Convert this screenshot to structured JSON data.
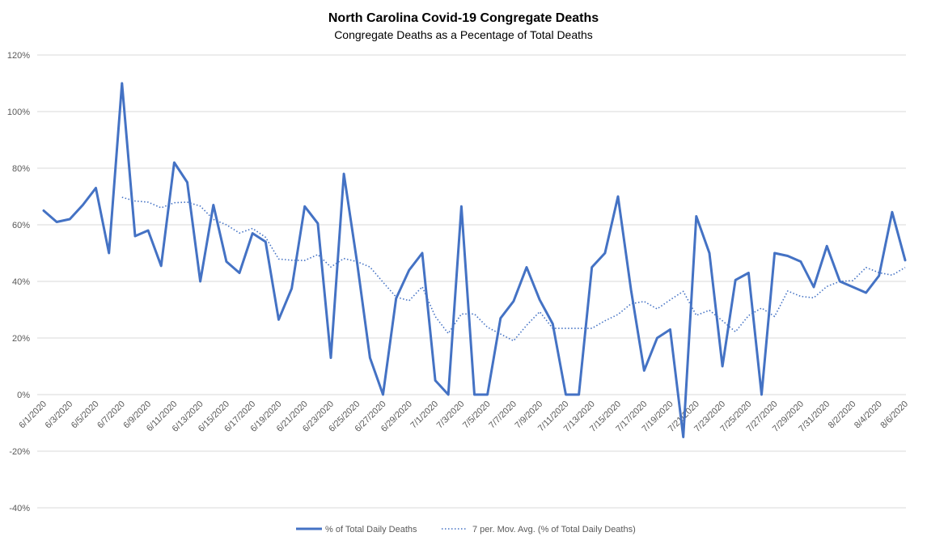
{
  "chart_data": {
    "type": "line",
    "title": "North Carolina Covid-19 Congregate Deaths",
    "subtitle": "Congregate Deaths as a Pecentage of Total Deaths",
    "ylim": [
      -40,
      120
    ],
    "y_ticks": [
      "120%",
      "100%",
      "80%",
      "60%",
      "40%",
      "20%",
      "0%",
      "-20%",
      "-40%"
    ],
    "y_tick_values": [
      120,
      100,
      80,
      60,
      40,
      20,
      0,
      -20,
      -40
    ],
    "grid": true,
    "legend_position": "bottom",
    "x": [
      "6/1/2020",
      "6/2/2020",
      "6/3/2020",
      "6/4/2020",
      "6/5/2020",
      "6/6/2020",
      "6/7/2020",
      "6/8/2020",
      "6/9/2020",
      "6/10/2020",
      "6/11/2020",
      "6/12/2020",
      "6/13/2020",
      "6/14/2020",
      "6/15/2020",
      "6/16/2020",
      "6/17/2020",
      "6/18/2020",
      "6/19/2020",
      "6/20/2020",
      "6/21/2020",
      "6/22/2020",
      "6/23/2020",
      "6/24/2020",
      "6/25/2020",
      "6/26/2020",
      "6/27/2020",
      "6/28/2020",
      "6/29/2020",
      "6/30/2020",
      "7/1/2020",
      "7/2/2020",
      "7/3/2020",
      "7/4/2020",
      "7/5/2020",
      "7/6/2020",
      "7/7/2020",
      "7/8/2020",
      "7/9/2020",
      "7/10/2020",
      "7/11/2020",
      "7/12/2020",
      "7/13/2020",
      "7/14/2020",
      "7/15/2020",
      "7/16/2020",
      "7/17/2020",
      "7/18/2020",
      "7/19/2020",
      "7/20/2020",
      "7/21/2020",
      "7/22/2020",
      "7/23/2020",
      "7/24/2020",
      "7/25/2020",
      "7/26/2020",
      "7/27/2020",
      "7/28/2020",
      "7/29/2020",
      "7/30/2020",
      "7/31/2020",
      "8/1/2020",
      "8/2/2020",
      "8/3/2020",
      "8/4/2020",
      "8/5/2020",
      "8/6/2020"
    ],
    "x_tick_labels": [
      "6/1/2020",
      "6/3/2020",
      "6/5/2020",
      "6/7/2020",
      "6/9/2020",
      "6/11/2020",
      "6/13/2020",
      "6/15/2020",
      "6/17/2020",
      "6/19/2020",
      "6/21/2020",
      "6/23/2020",
      "6/25/2020",
      "6/27/2020",
      "6/29/2020",
      "7/1/2020",
      "7/3/2020",
      "7/5/2020",
      "7/7/2020",
      "7/9/2020",
      "7/11/2020",
      "7/13/2020",
      "7/15/2020",
      "7/17/2020",
      "7/19/2020",
      "7/21/2020",
      "7/23/2020",
      "7/25/2020",
      "7/27/2020",
      "7/29/2020",
      "7/31/2020",
      "8/2/2020",
      "8/4/2020",
      "8/6/2020"
    ],
    "series": [
      {
        "name": "% of Total Daily Deaths",
        "color": "#4472c4",
        "style": "solid",
        "values": [
          65,
          61,
          62,
          67,
          73,
          50,
          110,
          56,
          58,
          45.5,
          82,
          75,
          40,
          67,
          47,
          43,
          57,
          54,
          26.5,
          37.5,
          66.5,
          60.5,
          13,
          78,
          47,
          13,
          0,
          34,
          44,
          50,
          5,
          0,
          66.5,
          0,
          0,
          27,
          33,
          45,
          33.5,
          25,
          0,
          0,
          45,
          50,
          70,
          37,
          8.5,
          20,
          23,
          -15,
          63,
          50,
          10,
          40.5,
          43,
          0,
          50,
          49,
          47,
          38,
          52.5,
          40,
          38,
          36,
          42,
          64.5,
          47.5
        ]
      },
      {
        "name": "7 per. Mov. Avg. (% of Total Daily Deaths)",
        "color": "#4472c4",
        "style": "dotted",
        "values": [
          null,
          null,
          null,
          null,
          null,
          null,
          69.7,
          68.4,
          68,
          66,
          67.8,
          68,
          66.6,
          61.9,
          60,
          57.1,
          58.7,
          55.6,
          47.9,
          47.5,
          47.4,
          49.5,
          45.1,
          48.1,
          47,
          45.1,
          39.7,
          34.5,
          33.2,
          38.1,
          27.6,
          21.6,
          28.5,
          28.5,
          23.8,
          21.4,
          19,
          24.5,
          29.3,
          23.4,
          23.4,
          23.4,
          23.4,
          26.1,
          28.3,
          32.1,
          32.9,
          30.3,
          33.5,
          36.5,
          28,
          29.8,
          26.1,
          22.2,
          27.9,
          30.6,
          27.6,
          36.6,
          34.7,
          34.2,
          38.2,
          40,
          40.3,
          44.9,
          43.1,
          42.2,
          44.9
        ]
      }
    ]
  }
}
